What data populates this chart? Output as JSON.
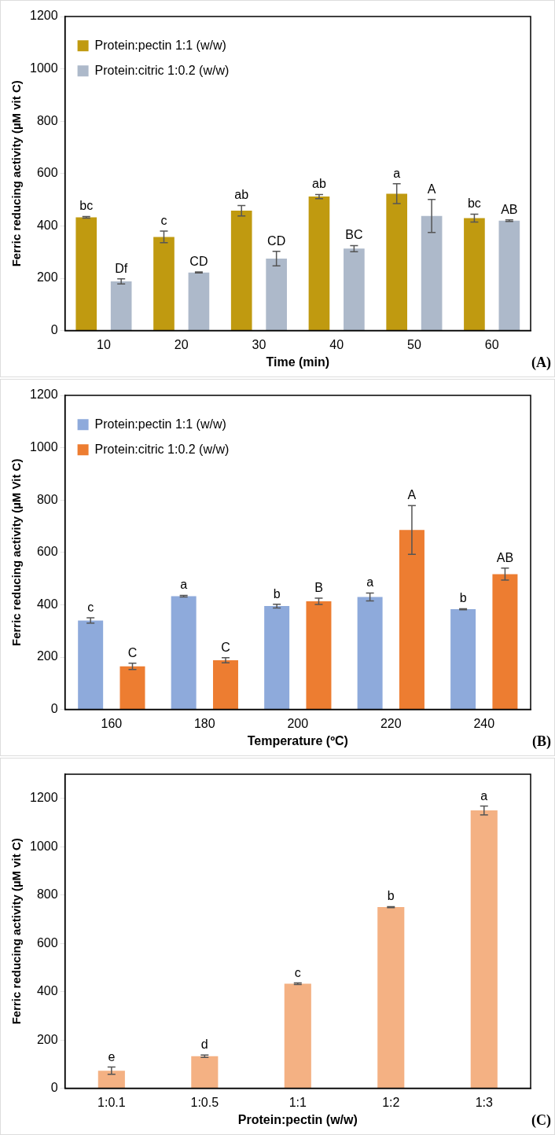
{
  "chart_data": [
    {
      "type": "bar",
      "xlabel": "Time (min)",
      "ylabel": "Ferric reducing activity (µM vit C)",
      "categories": [
        "10",
        "20",
        "30",
        "40",
        "50",
        "60"
      ],
      "series": [
        {
          "name": "Protein:pectin 1:1 (w/w)",
          "color": "#c09a10",
          "values": [
            433,
            358,
            458,
            512,
            523,
            430
          ],
          "errors": [
            3,
            22,
            20,
            8,
            38,
            15
          ]
        },
        {
          "name": "Protein:citric 1:0.2 (w/w)",
          "color": "#adb9ca",
          "values": [
            188,
            222,
            275,
            313,
            438,
            420
          ],
          "errors": [
            10,
            2,
            28,
            12,
            63,
            3
          ]
        }
      ],
      "ylim": [
        0,
        1200
      ],
      "yticks": [
        0,
        200,
        400,
        600,
        800,
        1000,
        1200
      ],
      "grid": false,
      "legend": "top left",
      "annotations": [
        "bc",
        "Df",
        "c",
        "CD",
        "ab",
        "CD",
        "ab",
        "BC",
        "a",
        "A",
        "bc",
        "AB",
        "(A)"
      ]
    },
    {
      "type": "bar",
      "xlabel": "Temperature (ºC)",
      "ylabel": "Ferric reducing activity (µM Vit C)",
      "categories": [
        "160",
        "180",
        "200",
        "220",
        "240"
      ],
      "series": [
        {
          "name": "Protein:pectin 1:1 (w/w)",
          "color": "#8eaadb",
          "values": [
            340,
            433,
            395,
            430,
            383
          ],
          "errors": [
            10,
            3,
            7,
            15,
            2
          ]
        },
        {
          "name": "Protein:citric 1:0.2 (w/w)",
          "color": "#ed7d31",
          "values": [
            165,
            188,
            413,
            686,
            517
          ],
          "errors": [
            12,
            10,
            12,
            93,
            23
          ]
        }
      ],
      "ylim": [
        0,
        1200
      ],
      "yticks": [
        0,
        200,
        400,
        600,
        800,
        1000,
        1200
      ],
      "grid": false,
      "legend": "top left",
      "annotations": [
        "c",
        "C",
        "a",
        "C",
        "b",
        "B",
        "a",
        "A",
        "b",
        "AB",
        "(B)"
      ]
    },
    {
      "type": "bar",
      "xlabel": "Protein:pectin (w/w)",
      "ylabel": "Ferric reducing activity (µM vit C)",
      "categories": [
        "1:0.1",
        "1:0.5",
        "1:1",
        "1:2",
        "1:3"
      ],
      "series": [
        {
          "color": "#f4b183",
          "values": [
            73,
            133,
            433,
            750,
            1150
          ],
          "errors": [
            15,
            5,
            3,
            2,
            18
          ]
        }
      ],
      "ylim": [
        0,
        1300
      ],
      "yticks": [
        0,
        200,
        400,
        600,
        800,
        1000,
        1200
      ],
      "grid": false,
      "legend": false,
      "annotations": [
        {
          "text": "e",
          "x": "1:0.1",
          "y": 73
        },
        {
          "text": "d",
          "x": "1:0.5",
          "y": 133
        },
        {
          "text": "c",
          "x": "1:1",
          "y": 433
        },
        {
          "text": "b",
          "x": "1:2",
          "y": 750
        },
        {
          "text": "a",
          "x": "1:3",
          "y": 1150
        },
        "(C)"
      ]
    }
  ]
}
